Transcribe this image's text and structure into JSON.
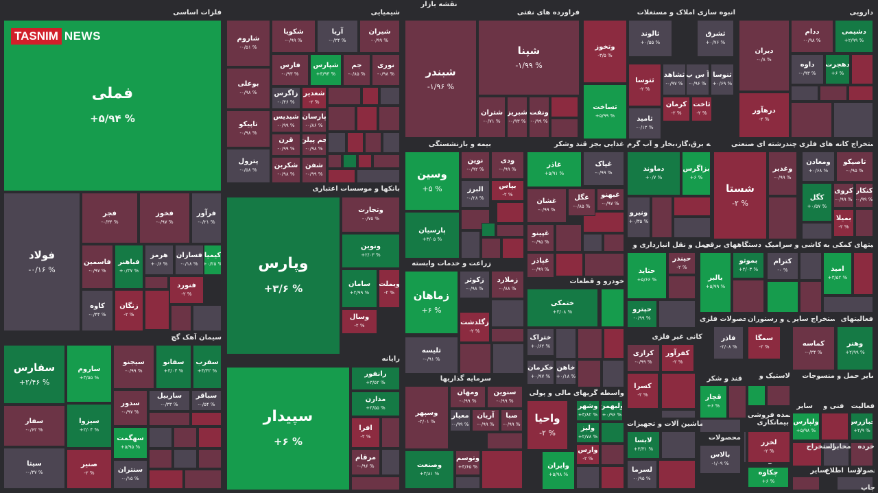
{
  "map_title": "نقشه بازار",
  "logo": {
    "part1": "TASNIM",
    "part2": "NEWS"
  },
  "colors": {
    "g2": "#169c4d",
    "g1": "#157a45",
    "n": "#4c4552",
    "r1": "#6c3446",
    "r2": "#8c2b40",
    "background": "#2b2b2f"
  },
  "sectors": [
    {
      "name": "فلزات اساسی"
    },
    {
      "name": "شیمیایی"
    },
    {
      "name": "فراورده های نفتی"
    },
    {
      "name": "انبوه سازی املاک و مستغلات"
    },
    {
      "name": "دارویی"
    },
    {
      "name": "بانکها و موسسات اعتباری"
    },
    {
      "name": "سیمان آهک گچ"
    },
    {
      "name": "رایانه"
    },
    {
      "name": "بیمه و بازنشستگی"
    },
    {
      "name": "غذایی بجز قند وشکر"
    },
    {
      "name": "عرضه برق،گاز،بخار و آب گرم"
    },
    {
      "name": "چندرشته ای صنعتی"
    },
    {
      "name": "استخراج کانه های فلزی"
    },
    {
      "name": "زراعت و خدمات وابسته"
    },
    {
      "name": "خودرو و قطعات"
    },
    {
      "name": "حمل و نقل انبارداری و"
    },
    {
      "name": "دستگاههای برقی"
    },
    {
      "name": "کاشی و سرامیک"
    },
    {
      "name": "فعالیتهای کمکی به"
    },
    {
      "name": "محصولات فلزی"
    },
    {
      "name": "هتل و رستوران"
    },
    {
      "name": "استخراج سایر"
    },
    {
      "name": "فعالیتهای"
    },
    {
      "name": "کانی غیر فلزی"
    },
    {
      "name": "سرمایه گذاریها"
    },
    {
      "name": "واسطه گریهای مالی و پولی"
    },
    {
      "name": "قند و شکر"
    },
    {
      "name": "لاستیک و"
    },
    {
      "name": "منسوجات"
    },
    {
      "name": "سایر حمل و"
    },
    {
      "name": "ماشین آلات و تجهیزات"
    },
    {
      "name": "فنی و"
    },
    {
      "name": "فعالیت"
    },
    {
      "name": "خرده"
    },
    {
      "name": "مخابرات"
    },
    {
      "name": "محصولات"
    },
    {
      "name": "بیمانکاری"
    },
    {
      "name": "عمده فروشی"
    },
    {
      "name": "استخراج"
    },
    {
      "name": "سایر"
    },
    {
      "name": "محصولات"
    },
    {
      "name": "اطلاع"
    },
    {
      "name": "سایر"
    },
    {
      "name": "وسا"
    },
    {
      "name": "محصولا"
    },
    {
      "name": "چاپ"
    }
  ],
  "tiles": [
    {
      "symbol": "فملی",
      "change": "+۵/۹۴ %",
      "color": "g2",
      "size": "s1"
    },
    {
      "symbol": "فولاد",
      "change": "-۰/۱۶ %",
      "color": "n",
      "size": "s2"
    },
    {
      "symbol": "فجر",
      "change": "-۰/۳۴ %",
      "color": "r1",
      "size": "s3"
    },
    {
      "symbol": "فخوز",
      "change": "-۰/۹۷ %",
      "color": "r1",
      "size": "s3"
    },
    {
      "symbol": "فرآور",
      "change": "-۰/۲۱ %",
      "color": "n",
      "size": "s3"
    },
    {
      "symbol": "فاسمین",
      "change": "-۰/۹۷ %",
      "color": "r1",
      "size": "s3"
    },
    {
      "symbol": "فباهنر",
      "change": "+۰/۳۷ %",
      "color": "g1",
      "size": "s3"
    },
    {
      "symbol": "هرمز",
      "change": "+۰/۶ %",
      "color": "n",
      "size": "s3"
    },
    {
      "symbol": "فسازان",
      "change": "-۰/۱۸ %",
      "color": "n",
      "size": "s3"
    },
    {
      "symbol": "کیمیا",
      "change": "+۰/۲۵ %",
      "color": "g2",
      "size": "s3"
    },
    {
      "symbol": "فنورد",
      "change": "-۲ %",
      "color": "r2",
      "size": "s3"
    },
    {
      "symbol": "کاوه",
      "change": "-۰/۴۴ %",
      "color": "n",
      "size": "s3"
    },
    {
      "symbol": "زنگان",
      "change": "-۲ %",
      "color": "r2",
      "size": "s3"
    },
    {
      "symbol": "سفارس",
      "change": "+۲/۴۶ %",
      "color": "g1",
      "size": "s2"
    },
    {
      "symbol": "ساروم",
      "change": "+۳/۵۵ %",
      "color": "g2",
      "size": "s3"
    },
    {
      "symbol": "سیجنو",
      "change": "-۰/۹۹ %",
      "color": "r1",
      "size": "s3"
    },
    {
      "symbol": "سفانو",
      "change": "+۳/۰۳ %",
      "color": "g1",
      "size": "s3"
    },
    {
      "symbol": "سفرب",
      "change": "+۴/۳۲ %",
      "color": "g1",
      "size": "s3"
    },
    {
      "symbol": "سدور",
      "change": "-۰/۹۷ %",
      "color": "r1",
      "size": "s3"
    },
    {
      "symbol": "ساربیل",
      "change": "-۰/۳۳ %",
      "color": "n",
      "size": "s3"
    },
    {
      "symbol": "سباقر",
      "change": "-۰/۵۴ %",
      "color": "n",
      "size": "s3"
    },
    {
      "symbol": "سفار",
      "change": "-۰/۶۲ %",
      "color": "r1",
      "size": "s3"
    },
    {
      "symbol": "سیزوا",
      "change": "+۲/۰۴ %",
      "color": "g1",
      "size": "s3"
    },
    {
      "symbol": "سهگمت",
      "change": "+۵/۹۵ %",
      "color": "g2",
      "size": "s3"
    },
    {
      "symbol": "سیتا",
      "change": "-۰/۳۷ %",
      "color": "n",
      "size": "s3"
    },
    {
      "symbol": "صنیر",
      "change": "-۲ %",
      "color": "r2",
      "size": "s3"
    },
    {
      "symbol": "سنتران",
      "change": "-۰/۱۵ %",
      "color": "n",
      "size": "s3"
    },
    {
      "symbol": "شاروم",
      "change": "-۰/۵۱ %",
      "color": "r1",
      "size": "s3"
    },
    {
      "symbol": "شکویا",
      "change": "-۰/۹۹ %",
      "color": "r1",
      "size": "s3"
    },
    {
      "symbol": "آریا",
      "change": "-۰/۳۴ %",
      "color": "n",
      "size": "s3"
    },
    {
      "symbol": "شیران",
      "change": "-۰/۹۹ %",
      "color": "r1",
      "size": "s3"
    },
    {
      "symbol": "بوعلی",
      "change": "-۰/۹۸ %",
      "color": "r1",
      "size": "s3"
    },
    {
      "symbol": "فارس",
      "change": "-۰/۹۳ %",
      "color": "r1",
      "size": "s3"
    },
    {
      "symbol": "شپارس",
      "change": "+۳/۹۳ %",
      "color": "g2",
      "size": "s3"
    },
    {
      "symbol": "جم",
      "change": "-۰/۸۵ %",
      "color": "r1",
      "size": "s3"
    },
    {
      "symbol": "نوری",
      "change": "-۰/۹۸ %",
      "color": "r1",
      "size": "s3"
    },
    {
      "symbol": "تاپیکو",
      "change": "-۰/۹۸ %",
      "color": "r1",
      "size": "s3"
    },
    {
      "symbol": "زاگرس",
      "change": "-۰/۴۶ %",
      "color": "n",
      "size": "s3"
    },
    {
      "symbol": "شغدیر",
      "change": "-۲ %",
      "color": "r2",
      "size": "s3"
    },
    {
      "symbol": "شیدیس",
      "change": "-۰/۹۹ %",
      "color": "r1",
      "size": "s3"
    },
    {
      "symbol": "پارسان",
      "change": "-۰/۸۶ %",
      "color": "r1",
      "size": "s3"
    },
    {
      "symbol": "پترول",
      "change": "-۰/۵۸ %",
      "color": "n",
      "size": "s3"
    },
    {
      "symbol": "قرن",
      "change": "-۰/۹۹ %",
      "color": "r1",
      "size": "s3"
    },
    {
      "symbol": "جم پیلن",
      "change": "-۰/۹۸ %",
      "color": "r1",
      "size": "s3"
    },
    {
      "symbol": "شکربن",
      "change": "-۰/۹۸ %",
      "color": "r1",
      "size": "s3"
    },
    {
      "symbol": "شفن",
      "change": "-۰/۹۹ %",
      "color": "r1",
      "size": "s3"
    },
    {
      "symbol": "وپارس",
      "change": "+۳/۶ %",
      "color": "g1",
      "size": "s1"
    },
    {
      "symbol": "وتجارت",
      "change": "-۰/۷۵ %",
      "color": "r1",
      "size": "s3"
    },
    {
      "symbol": "ونوین",
      "change": "+۲/۰۳ %",
      "color": "g1",
      "size": "s3"
    },
    {
      "symbol": "سامان",
      "change": "+۲/۹۹ %",
      "color": "g1",
      "size": "s3"
    },
    {
      "symbol": "وبملت",
      "change": "-۲ %",
      "color": "r2",
      "size": "s3"
    },
    {
      "symbol": "وسال",
      "change": "-۲ %",
      "color": "r2",
      "size": "s3"
    },
    {
      "symbol": "سپیدار",
      "change": "+۶ %",
      "color": "g2",
      "size": "s1"
    },
    {
      "symbol": "رانفور",
      "change": "+۳/۵۲ %",
      "color": "g1",
      "size": "s3"
    },
    {
      "symbol": "مدارن",
      "change": "+۳/۵۵ %",
      "color": "g1",
      "size": "s3"
    },
    {
      "symbol": "افرا",
      "change": "-۲ %",
      "color": "r2",
      "size": "s3"
    },
    {
      "symbol": "مرقام",
      "change": "-۰/۹۶ %",
      "color": "r1",
      "size": "s3"
    },
    {
      "symbol": "شبندر",
      "change": "-۱/۹۶ %",
      "color": "r1",
      "size": "s2"
    },
    {
      "symbol": "شپنا",
      "change": "-۱/۹۹ %",
      "color": "r1",
      "size": "s2"
    },
    {
      "symbol": "شتران",
      "change": "-۰/۷۱ %",
      "color": "r1",
      "size": "s3"
    },
    {
      "symbol": "شبریز",
      "change": "-۰/۹۳ %",
      "color": "r1",
      "size": "s3"
    },
    {
      "symbol": "ونفت",
      "change": "-۰/۹۹ %",
      "color": "r1",
      "size": "s3"
    },
    {
      "symbol": "وسین",
      "change": "+۵ %",
      "color": "g2",
      "size": "s2"
    },
    {
      "symbol": "پارسیان",
      "change": "+۳/۰۵ %",
      "color": "g1",
      "size": "s3"
    },
    {
      "symbol": "نوین",
      "change": "-۰/۹۲ %",
      "color": "r1",
      "size": "s3"
    },
    {
      "symbol": "ودی",
      "change": "-۰/۹۹ %",
      "color": "r1",
      "size": "s3"
    },
    {
      "symbol": "البرز",
      "change": "-۰/۲۸ %",
      "color": "n",
      "size": "s3"
    },
    {
      "symbol": "بپاس",
      "change": "-۲ %",
      "color": "r2",
      "size": "s3"
    },
    {
      "symbol": "زماهان",
      "change": "+۶ %",
      "color": "g2",
      "size": "s2"
    },
    {
      "symbol": "زکوثر",
      "change": "-۰/۹۸ %",
      "color": "n",
      "size": "s3"
    },
    {
      "symbol": "زملارد",
      "change": "-۰/۸۸ %",
      "color": "r1",
      "size": "s3"
    },
    {
      "symbol": "زگلدشت",
      "change": "-۲ %",
      "color": "r2",
      "size": "s3"
    },
    {
      "symbol": "تلیسه",
      "change": "-۰/۹۱ %",
      "color": "n",
      "size": "s3"
    },
    {
      "symbol": "وسپهر",
      "change": "-۲/۰۱ %",
      "color": "r1",
      "size": "s3"
    },
    {
      "symbol": "ومهان",
      "change": "-۰/۹۹ %",
      "color": "r1",
      "size": "s3"
    },
    {
      "symbol": "سنوین",
      "change": "-۰/۹۹ %",
      "color": "r1",
      "size": "s3"
    },
    {
      "symbol": "معیار",
      "change": "-۰/۹۹ %",
      "color": "n",
      "size": "s3"
    },
    {
      "symbol": "آریان",
      "change": "-۰/۹۹ %",
      "color": "r1",
      "size": "s3"
    },
    {
      "symbol": "صبا",
      "change": "-۰/۹۹ %",
      "color": "r1",
      "size": "s3"
    },
    {
      "symbol": "وصنعت",
      "change": "+۳/۸۱ %",
      "color": "g1",
      "size": "s3"
    },
    {
      "symbol": "وتوسم",
      "change": "+۳/۶۵ %",
      "color": "r1",
      "size": "s3"
    },
    {
      "symbol": "غاذر",
      "change": "+۵/۹۱ %",
      "color": "g2",
      "size": "s3"
    },
    {
      "symbol": "غپاک",
      "change": "-۰/۹۹ %",
      "color": "n",
      "size": "s3"
    },
    {
      "symbol": "غشان",
      "change": "-۰/۹۹ %",
      "color": "r1",
      "size": "s3"
    },
    {
      "symbol": "غگل",
      "change": "-۰/۸۵ %",
      "color": "r1",
      "size": "s3"
    },
    {
      "symbol": "غبهنو",
      "change": "-۰/۹۷ %",
      "color": "r1",
      "size": "s3"
    },
    {
      "symbol": "غپینو",
      "change": "-۰/۹۵ %",
      "color": "r1",
      "size": "s3"
    },
    {
      "symbol": "غپاذر",
      "change": "-۰/۹۹ %",
      "color": "r1",
      "size": "s3"
    },
    {
      "symbol": "ختمکی",
      "change": "+۳/۰۸ %",
      "color": "g1",
      "size": "s3"
    },
    {
      "symbol": "ختراک",
      "change": "+۰/۶۲ %",
      "color": "n",
      "size": "s3"
    },
    {
      "symbol": "خکرمان",
      "change": "+۰/۹۷ %",
      "color": "n",
      "size": "s3"
    },
    {
      "symbol": "خاهن",
      "change": "+۰/۱۸ %",
      "color": "n",
      "size": "s3"
    },
    {
      "symbol": "واحیا",
      "change": "-۲ %",
      "color": "r2",
      "size": "s2"
    },
    {
      "symbol": "وشهر",
      "change": "+۳/۸۲ %",
      "color": "g1",
      "size": "s3"
    },
    {
      "symbol": "ولبهمن",
      "change": "+۰/۹۶ %",
      "color": "g1",
      "size": "s3"
    },
    {
      "symbol": "ولیز",
      "change": "+۲/۷۸ %",
      "color": "g1",
      "size": "s3"
    },
    {
      "symbol": "وارس",
      "change": "-۲ %",
      "color": "r2",
      "size": "s3"
    },
    {
      "symbol": "وایران",
      "change": "+۵/۹۸ %",
      "color": "g2",
      "size": "s3"
    },
    {
      "symbol": "وتخوز",
      "change": "-۳/۵ %",
      "color": "r2",
      "size": "s3"
    },
    {
      "symbol": "ثالوند",
      "change": "+۰/۵۵ %",
      "color": "n",
      "size": "s3"
    },
    {
      "symbol": "ثشرق",
      "change": "+۰/۷۶ %",
      "color": "n",
      "size": "s3"
    },
    {
      "symbol": "آ س پ",
      "change": "-۰/۹۶ %",
      "color": "n",
      "size": "s3"
    },
    {
      "symbol": "ثنوسا",
      "change": "+۰/۶۹ %",
      "color": "n",
      "size": "s3"
    },
    {
      "symbol": "ثتوسا",
      "change": "-۲ %",
      "color": "r2",
      "size": "s3"
    },
    {
      "symbol": "ثشاهد",
      "change": "-۰/۹۷ %",
      "color": "n",
      "size": "s3"
    },
    {
      "symbol": "ثساخت",
      "change": "+۵/۹۹ %",
      "color": "g2",
      "size": "s3"
    },
    {
      "symbol": "کرمان",
      "change": "-۲ %",
      "color": "r2",
      "size": "s3"
    },
    {
      "symbol": "ثاخت",
      "change": "-۲ %",
      "color": "r2",
      "size": "s3"
    },
    {
      "symbol": "ثامید",
      "change": "-۰/۱۲ %",
      "color": "n",
      "size": "s3"
    },
    {
      "symbol": "دیران",
      "change": "-۰/۸ %",
      "color": "r1",
      "size": "s3"
    },
    {
      "symbol": "ددام",
      "change": "-۰/۹۸ %",
      "color": "r1",
      "size": "s3"
    },
    {
      "symbol": "دشیمی",
      "change": "+۲/۹۹ %",
      "color": "g1",
      "size": "s3"
    },
    {
      "symbol": "داوه",
      "change": "-۰/۹۳ %",
      "color": "n",
      "size": "s3"
    },
    {
      "symbol": "دهجرت",
      "change": "+۶ %",
      "color": "g1",
      "size": "s3"
    },
    {
      "symbol": "درهآور",
      "change": "-۲ %",
      "color": "r2",
      "size": "s3"
    },
    {
      "symbol": "دماوند",
      "change": "+۰/۷ %",
      "color": "g1",
      "size": "s3"
    },
    {
      "symbol": "بزاگرس",
      "change": "+۶ %",
      "color": "g2",
      "size": "s3"
    },
    {
      "symbol": "ونیرو",
      "change": "+۰/۳۵ %",
      "color": "n",
      "size": "s3"
    },
    {
      "symbol": "شستا",
      "change": "-۲ %",
      "color": "r2",
      "size": "s2"
    },
    {
      "symbol": "وغدیر",
      "change": "-۰/۹۹ %",
      "color": "r1",
      "size": "s3"
    },
    {
      "symbol": "ومعادن",
      "change": "+۰/۶۸ %",
      "color": "n",
      "size": "s3"
    },
    {
      "symbol": "تاصیکو",
      "change": "-۰/۹۵ %",
      "color": "r1",
      "size": "s3"
    },
    {
      "symbol": "کگل",
      "change": "+۰/۵۷ %",
      "color": "g1",
      "size": "s3"
    },
    {
      "symbol": "کروی",
      "change": "-۰/۹۹ %",
      "color": "r1",
      "size": "s3"
    },
    {
      "symbol": "کنکار",
      "change": "-۰/۹۹ %",
      "color": "r1",
      "size": "s3"
    },
    {
      "symbol": "بمیلا",
      "change": "-۲ %",
      "color": "r2",
      "size": "s3"
    },
    {
      "symbol": "حتاید",
      "change": "+۵/۶۶ %",
      "color": "g2",
      "size": "s3"
    },
    {
      "symbol": "حیندر",
      "change": "-۲ %",
      "color": "r1",
      "size": "s3"
    },
    {
      "symbol": "حپترو",
      "change": "-۰/۹۹ %",
      "color": "g1",
      "size": "s3"
    },
    {
      "symbol": "بالبر",
      "change": "+۵/۹۹ %",
      "color": "g2",
      "size": "s3"
    },
    {
      "symbol": "بموتو",
      "change": "+۲/۰۳ %",
      "color": "g1",
      "size": "s3"
    },
    {
      "symbol": "کترام",
      "change": "-۰ %",
      "color": "n",
      "size": "s3"
    },
    {
      "symbol": "امید",
      "change": "+۳/۵۲ %",
      "color": "g2",
      "size": "s3"
    },
    {
      "symbol": "فاذر",
      "change": "-۲/۰۸ %",
      "color": "n",
      "size": "s3"
    },
    {
      "symbol": "سمگا",
      "change": "-۲ %",
      "color": "r2",
      "size": "s3"
    },
    {
      "symbol": "کماسه",
      "change": "-۰/۳۴ %",
      "color": "r1",
      "size": "s3"
    },
    {
      "symbol": "وهنر",
      "change": "+۲/۹۹ %",
      "color": "g1",
      "size": "s3"
    },
    {
      "symbol": "کرازی",
      "change": "-۰/۹۹ %",
      "color": "r1",
      "size": "s3"
    },
    {
      "symbol": "کفرآور",
      "change": "-۲ %",
      "color": "r2",
      "size": "s3"
    },
    {
      "symbol": "کسرا",
      "change": "-۲ %",
      "color": "r2",
      "size": "s3"
    },
    {
      "symbol": "قچار",
      "change": "+۶ %",
      "color": "g2",
      "size": "s3"
    },
    {
      "symbol": "ولپارس",
      "change": "+۵/۹۸ %",
      "color": "g2",
      "size": "s3"
    },
    {
      "symbol": "خبازرس",
      "change": "+۲/۹ %",
      "color": "g1",
      "size": "s3"
    },
    {
      "symbol": "لابسا",
      "change": "+۳/۳۱ %",
      "color": "g1",
      "size": "s3"
    },
    {
      "symbol": "لسرما",
      "change": "-۰/۹۵ %",
      "color": "n",
      "size": "s3"
    },
    {
      "symbol": "لخزر",
      "change": "-۲ %",
      "color": "r2",
      "size": "s3"
    },
    {
      "symbol": "بالاس",
      "change": "-۱/۰۹ %",
      "color": "n",
      "size": "s3"
    },
    {
      "symbol": "چکاوه",
      "change": "+۶ %",
      "color": "g2",
      "size": "s3"
    },
    {
      "symbol": "وملی",
      "change": "-۰/۹۹ %",
      "color": "n",
      "size": "s3"
    }
  ]
}
